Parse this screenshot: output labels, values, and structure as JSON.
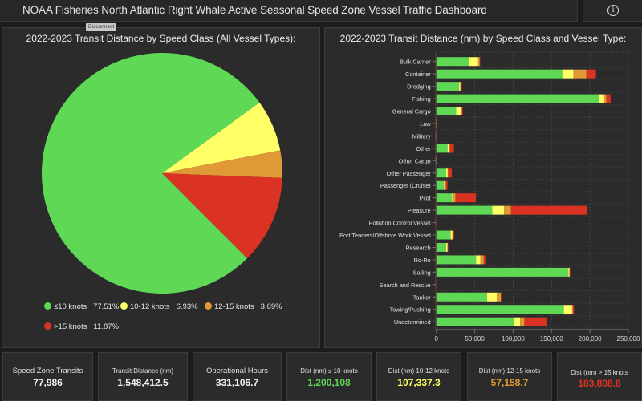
{
  "header": {
    "title": "NOAA Fisheries North Atlantic Right Whale Active Seasonal Speed Zone Vessel Traffic Dashboard",
    "info_icon": "info-icon"
  },
  "tooltip": {
    "text": "Disconnect"
  },
  "colors": {
    "le10": "#5fd855",
    "k10_12": "#ffff66",
    "k12_15": "#e09a35",
    "gt15": "#da3223",
    "panel_bg": "#2b2b2b",
    "grid": "#4a4a4a"
  },
  "pie_panel": {
    "title": "2022-2023 Transit Distance by Speed Class (All Vessel Types):"
  },
  "bar_panel": {
    "title": "2022-2023 Transit Distance (nm) by Speed Class and Vessel Type:"
  },
  "chart_data": [
    {
      "type": "pie",
      "title": "2022-2023 Transit Distance by Speed Class (All Vessel Types):",
      "categories": [
        "≤10 knots",
        "10-12 knots",
        "12-15 knots",
        ">15 knots"
      ],
      "values": [
        77.51,
        6.93,
        3.69,
        11.87
      ],
      "value_labels": [
        "77.51%",
        "6.93%",
        "3.69%",
        "11.87%"
      ],
      "colors": [
        "#5fd855",
        "#ffff66",
        "#e09a35",
        "#da3223"
      ],
      "legend": "bottom"
    },
    {
      "type": "bar",
      "orientation": "horizontal",
      "stacked": true,
      "title": "2022-2023 Transit Distance (nm) by Speed Class and Vessel Type:",
      "xlim": [
        0,
        250000
      ],
      "xticks": [
        0,
        50000,
        100000,
        150000,
        200000,
        250000
      ],
      "xtick_labels": [
        "0",
        "50,000",
        "100,000",
        "150,000",
        "200,000",
        "250,000"
      ],
      "grid": true,
      "categories": [
        "Bulk Carrier",
        "Container",
        "Dredging",
        "Fishing",
        "General Cargo",
        "Law",
        "Military",
        "Other",
        "Other Cargo",
        "Other Passenger",
        "Passenger (Cruise)",
        "Pilot",
        "Pleasure",
        "Pollution Control Vessel",
        "Port Tenders/Offshore Work Vessel",
        "Research",
        "Ro-Ro",
        "Sailing",
        "Search and Rescue",
        "Tanker",
        "Towing/Pushing",
        "Undetermined"
      ],
      "series": [
        {
          "name": "≤10 knots",
          "color": "#5fd855",
          "values": [
            43000,
            164000,
            29700,
            211600,
            25700,
            100,
            100,
            14600,
            200,
            12800,
            10000,
            20400,
            72900,
            0,
            18700,
            12800,
            51700,
            171900,
            0,
            66000,
            166000,
            101400
          ]
        },
        {
          "name": "10-12 knots",
          "color": "#ffff66",
          "values": [
            11500,
            14600,
            1400,
            7000,
            6000,
            0,
            0,
            2400,
            100,
            2000,
            1800,
            800,
            15300,
            0,
            2000,
            1700,
            5600,
            1300,
            0,
            12800,
            10800,
            7600
          ]
        },
        {
          "name": "12-15 knots",
          "color": "#e09a35",
          "values": [
            2000,
            16700,
            1000,
            2800,
            1700,
            100,
            100,
            500,
            400,
            500,
            500,
            3700,
            9000,
            0,
            800,
            200,
            4500,
            300,
            0,
            5200,
            1000,
            5600
          ]
        },
        {
          "name": ">15 knots",
          "color": "#da3223",
          "values": [
            500,
            12500,
            1000,
            5500,
            1000,
            300,
            300,
            5400,
            500,
            4800,
            2200,
            26700,
            99700,
            100,
            1500,
            200,
            2000,
            300,
            100,
            300,
            1400,
            29500
          ]
        }
      ]
    }
  ],
  "kpis": [
    {
      "label": "Speed Zone Transits",
      "value": "77,986",
      "color": "#f0f0f0",
      "small": false
    },
    {
      "label": "Transit Distance (nm)",
      "value": "1,548,412.5",
      "color": "#f0f0f0",
      "small": true
    },
    {
      "label": "Operational Hours",
      "value": "331,106.7",
      "color": "#f0f0f0",
      "small": false
    },
    {
      "label": "Dist (nm) ≤ 10 knots",
      "value": "1,200,108",
      "color": "#5fd855",
      "small": true
    },
    {
      "label": "Dist (nm) 10-12 knots",
      "value": "107,337.3",
      "color": "#ffff66",
      "small": true
    },
    {
      "label": "Dist (nm) 12-15 knots",
      "value": "57,158.7",
      "color": "#e09a35",
      "small": true
    },
    {
      "label": "Dist (nm) > 15 knots",
      "value": "183,808.8",
      "color": "#da3223",
      "small": true
    }
  ]
}
